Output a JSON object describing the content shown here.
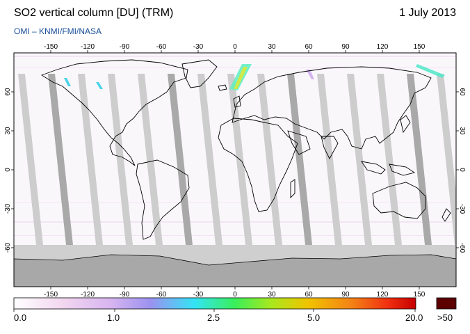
{
  "header": {
    "title": "SO2 vertical column [DU] (TRM)",
    "date": "1 July 2013",
    "subtitle": "OMI  –  KNMI/FMI/NASA"
  },
  "map": {
    "lon_ticks": [
      "-150",
      "-120",
      "-90",
      "-60",
      "-30",
      "0",
      "30",
      "60",
      "90",
      "120",
      "150"
    ],
    "lat_ticks": [
      "60",
      "30",
      "0",
      "-30",
      "-60"
    ],
    "colors": {
      "background": "#faf7fb",
      "no_data_band": "#c8c8c8",
      "no_data_dark": "#a9a9a9",
      "antarctica": "#a6a6a6",
      "coastline": "#000000"
    }
  },
  "colorbar": {
    "labels": [
      {
        "text": "0.0",
        "value": 0.0
      },
      {
        "text": "1.0",
        "value": 1.0
      },
      {
        "text": "2.5",
        "value": 2.5
      },
      {
        "text": "5.0",
        "value": 5.0
      },
      {
        "text": "20.0",
        "value": 20.0
      }
    ],
    "overflow_label": ">50",
    "overflow_color": "#5c0000",
    "gradient_stops": [
      "#ffffff",
      "#f3d3f0",
      "#c8a3ee",
      "#8b8cf0",
      "#37e7f5",
      "#3bef5c",
      "#a6e81d",
      "#f0c400",
      "#f48316",
      "#f03010",
      "#c60000"
    ]
  }
}
